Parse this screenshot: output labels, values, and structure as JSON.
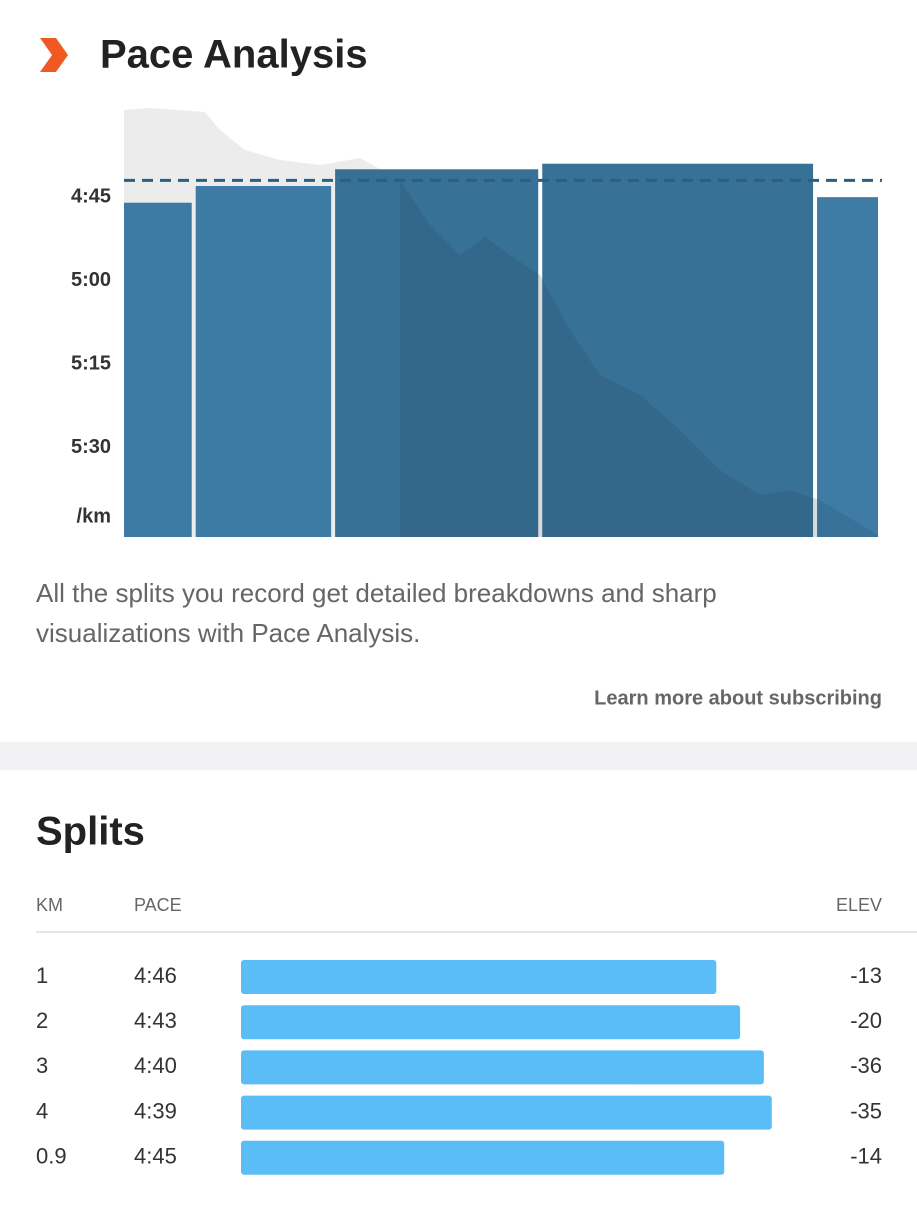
{
  "header": {
    "title": "Pace Analysis"
  },
  "chart_data": {
    "type": "bar",
    "values": [
      286,
      283,
      280,
      279,
      285
    ],
    "average": 282,
    "ylim": [
      346,
      269
    ],
    "yticks": [
      {
        "value": 285,
        "label": "4:45"
      },
      {
        "value": 300,
        "label": "5:00"
      },
      {
        "value": 315,
        "label": "5:15"
      },
      {
        "value": 330,
        "label": "5:30"
      }
    ],
    "y_unit": "/km",
    "colors": [
      "#3475a0",
      "#3475a0",
      "#2d6990",
      "#2d6990",
      "#3475a0"
    ]
  },
  "description": "All the splits you record get detailed breakdowns and sharp visualizations with Pace Analysis.",
  "link": "Learn more about subscribing",
  "splits": {
    "title": "Splits",
    "columns": [
      "KM",
      "PACE",
      "ELEV"
    ],
    "rows": [
      [
        1,
        "4:46",
        -13
      ],
      [
        2,
        "4:43",
        -20
      ],
      [
        3,
        "4:40",
        -36
      ],
      [
        4,
        "4:39",
        -35
      ],
      [
        0.9,
        "4:45",
        -14
      ]
    ],
    "bar_color": "#5bbdf5"
  }
}
